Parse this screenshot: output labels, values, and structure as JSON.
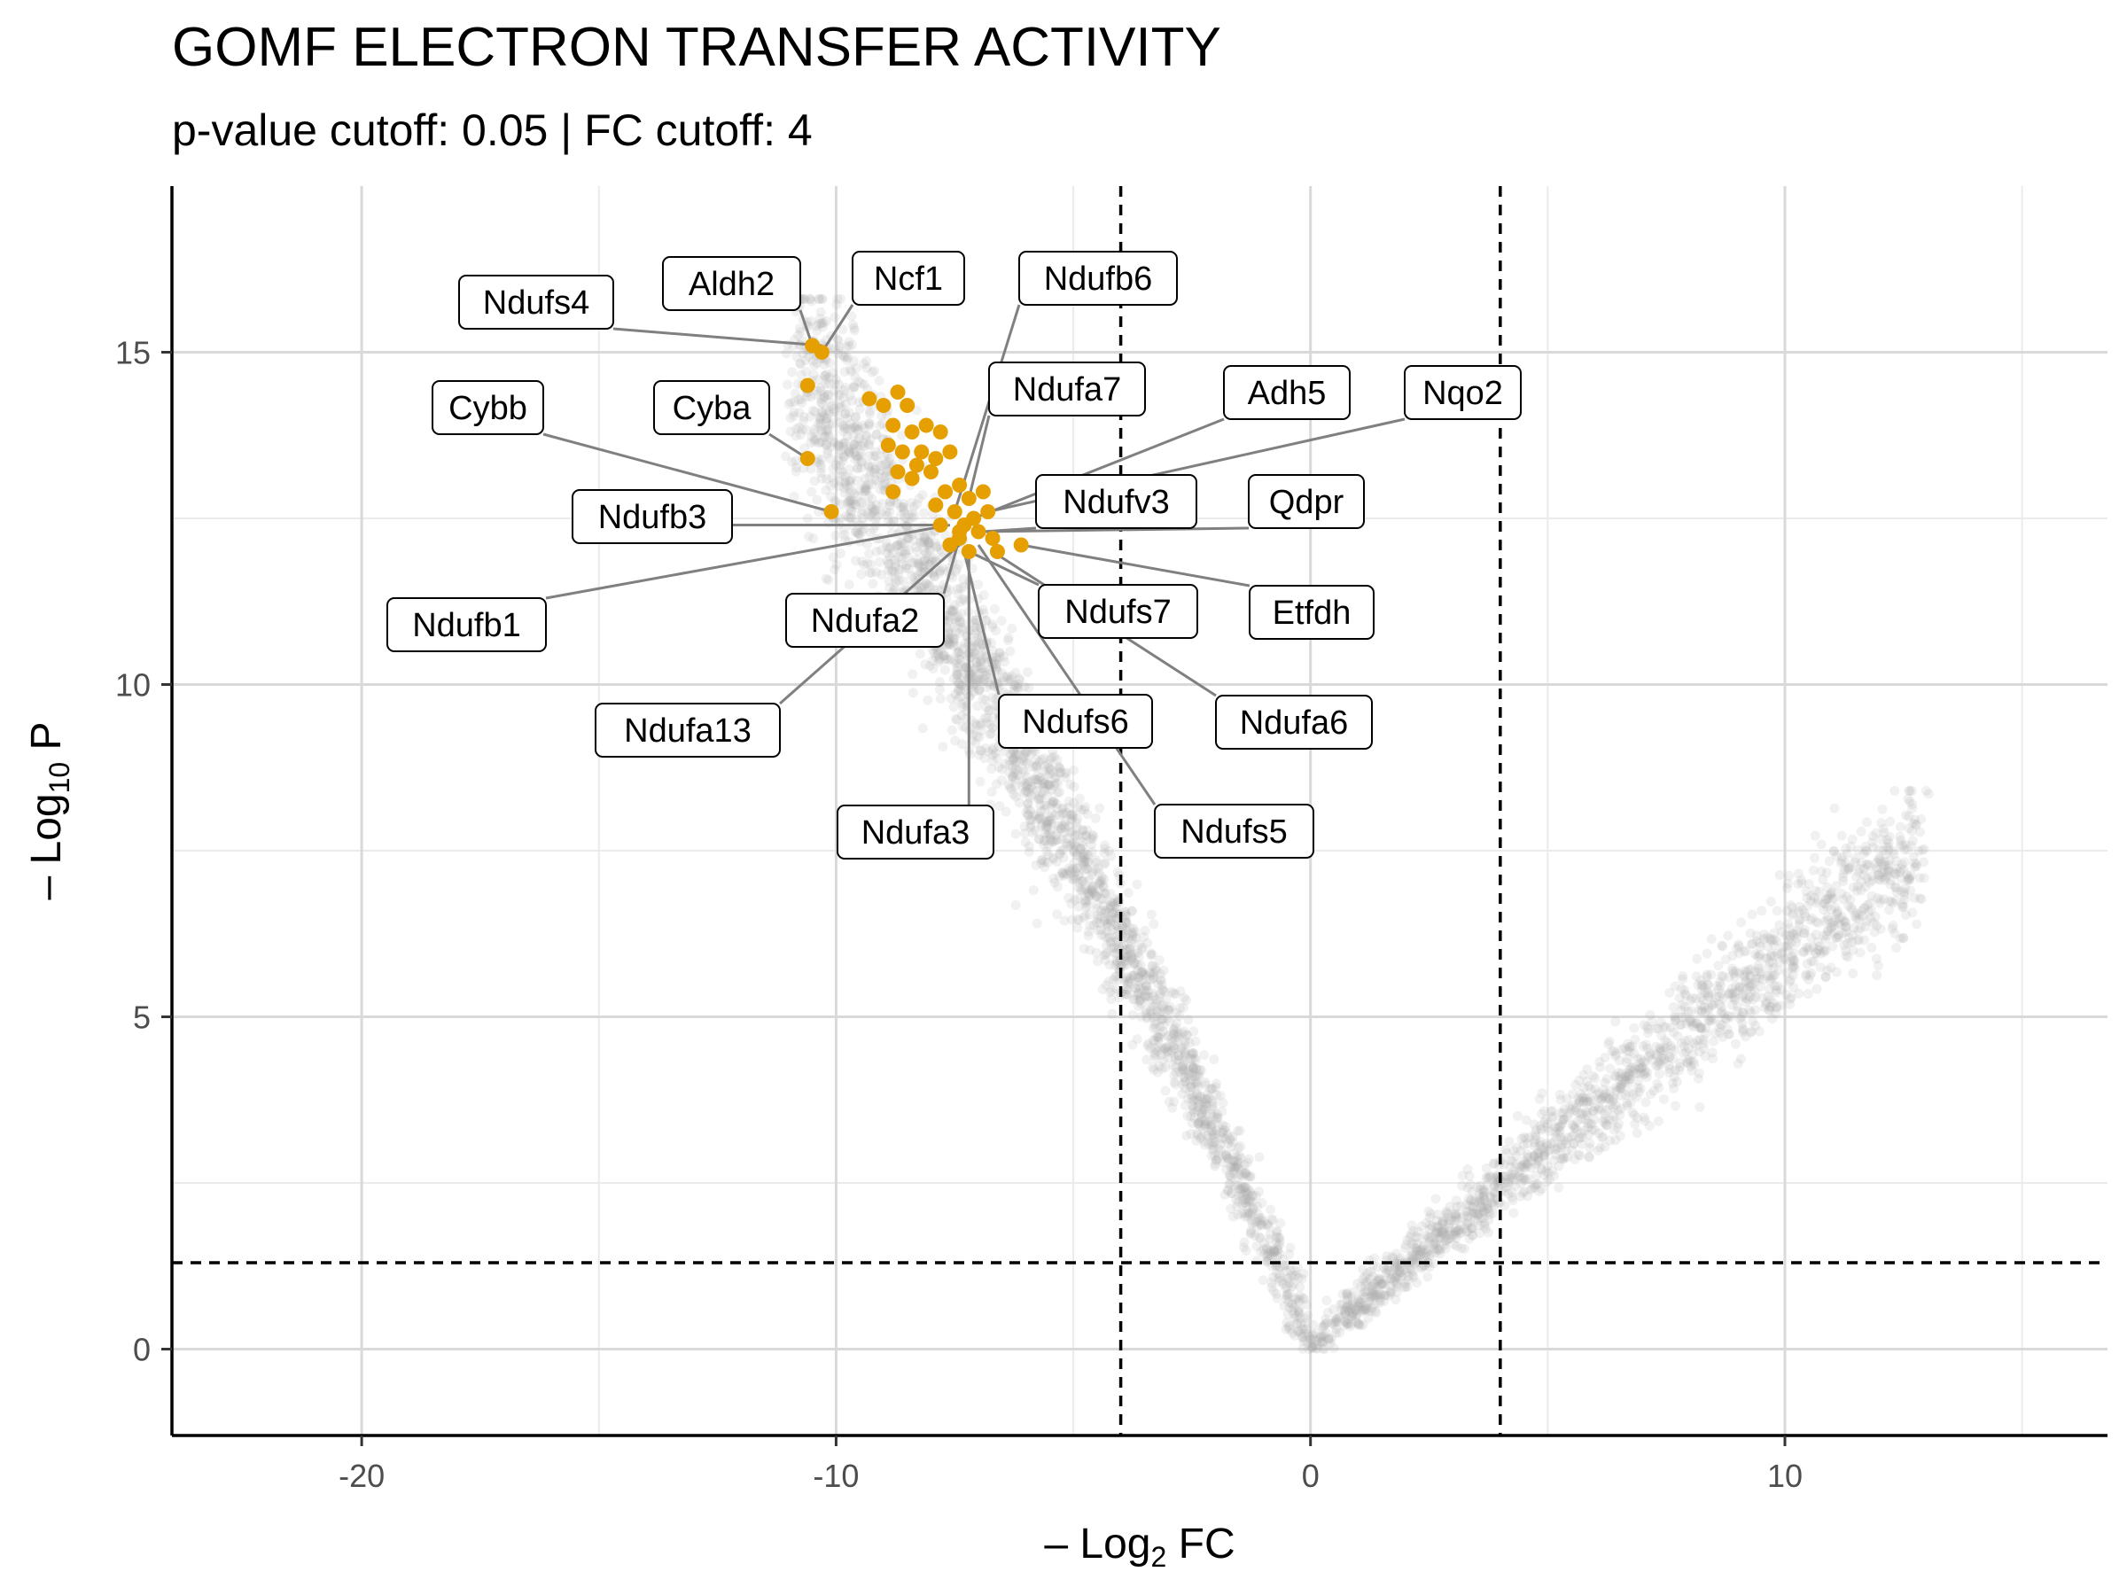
{
  "chart_data": {
    "type": "scatter",
    "title": "GOMF ELECTRON TRANSFER ACTIVITY",
    "subtitle": "p-value cutoff: 0.05 | FC cutoff: 4",
    "xlabel": {
      "prefix": "– Log",
      "sub": "2",
      "suffix": " FC"
    },
    "ylabel": {
      "prefix": "– Log",
      "sub": "10",
      "suffix": " P"
    },
    "xlim": [
      -24,
      16.8
    ],
    "ylim": [
      -1.3,
      17.5
    ],
    "x_ticks": [
      -20,
      -10,
      0,
      10
    ],
    "y_ticks": [
      0,
      5,
      10,
      15
    ],
    "grid": true,
    "cutoffs": {
      "fc_lines": [
        -4,
        4
      ],
      "p_line": 1.3
    },
    "colors": {
      "background_points": "#a6a6a6",
      "highlight": "#e69f00",
      "cutoff_line": "#000000",
      "grid": "#d9d9d9",
      "connector": "#808080"
    },
    "background_series": {
      "name": "",
      "description_free": true,
      "left_arm": {
        "x_range": [
          -11.5,
          0
        ],
        "peak_y": 15.8
      },
      "right_arm": {
        "x_range": [
          0,
          14
        ],
        "peak_y": 8.4
      }
    },
    "highlighted_points": [
      {
        "x": -10.5,
        "y": 15.1
      },
      {
        "x": -10.3,
        "y": 15.0
      },
      {
        "x": -10.6,
        "y": 14.5
      },
      {
        "x": -10.6,
        "y": 13.4
      },
      {
        "x": -10.1,
        "y": 12.6
      },
      {
        "x": -9.3,
        "y": 14.3
      },
      {
        "x": -9.0,
        "y": 14.2
      },
      {
        "x": -8.7,
        "y": 14.4
      },
      {
        "x": -8.5,
        "y": 14.2
      },
      {
        "x": -8.8,
        "y": 13.9
      },
      {
        "x": -8.4,
        "y": 13.8
      },
      {
        "x": -8.1,
        "y": 13.9
      },
      {
        "x": -7.8,
        "y": 13.8
      },
      {
        "x": -8.9,
        "y": 13.6
      },
      {
        "x": -8.6,
        "y": 13.5
      },
      {
        "x": -8.2,
        "y": 13.5
      },
      {
        "x": -7.9,
        "y": 13.4
      },
      {
        "x": -7.6,
        "y": 13.5
      },
      {
        "x": -8.7,
        "y": 13.2
      },
      {
        "x": -8.4,
        "y": 13.1
      },
      {
        "x": -8.0,
        "y": 13.2
      },
      {
        "x": -8.8,
        "y": 12.9
      },
      {
        "x": -7.7,
        "y": 12.9
      },
      {
        "x": -7.4,
        "y": 13.0
      },
      {
        "x": -7.2,
        "y": 12.8
      },
      {
        "x": -6.9,
        "y": 12.9
      },
      {
        "x": -7.9,
        "y": 12.7
      },
      {
        "x": -7.5,
        "y": 12.6
      },
      {
        "x": -7.1,
        "y": 12.5
      },
      {
        "x": -6.8,
        "y": 12.6
      },
      {
        "x": -7.8,
        "y": 12.4
      },
      {
        "x": -7.4,
        "y": 12.3
      },
      {
        "x": -7.0,
        "y": 12.3
      },
      {
        "x": -7.6,
        "y": 12.1
      },
      {
        "x": -7.2,
        "y": 12.0
      },
      {
        "x": -6.7,
        "y": 12.2
      },
      {
        "x": -6.6,
        "y": 12.0
      },
      {
        "x": -6.1,
        "y": 12.1
      },
      {
        "x": -7.4,
        "y": 12.2
      },
      {
        "x": -8.3,
        "y": 13.3
      },
      {
        "x": -7.3,
        "y": 12.4
      }
    ],
    "labels": [
      {
        "text": "Ndufs4",
        "x": -10.3,
        "y": 15.1
      },
      {
        "text": "Aldh2",
        "x": -10.5,
        "y": 15.1
      },
      {
        "text": "Ncf1",
        "x": -10.3,
        "y": 15.0
      },
      {
        "text": "Ndufb6",
        "x": -7.5,
        "y": 12.6
      },
      {
        "text": "Ndufa7",
        "x": -7.2,
        "y": 12.8
      },
      {
        "text": "Adh5",
        "x": -7.1,
        "y": 12.5
      },
      {
        "text": "Nqo2",
        "x": -6.8,
        "y": 12.6
      },
      {
        "text": "Cybb",
        "x": -10.1,
        "y": 12.6
      },
      {
        "text": "Cyba",
        "x": -10.6,
        "y": 13.4
      },
      {
        "text": "Ndufv3",
        "x": -6.9,
        "y": 12.3
      },
      {
        "text": "Qdpr",
        "x": -7.0,
        "y": 12.3
      },
      {
        "text": "Ndufb3",
        "x": -7.8,
        "y": 12.4
      },
      {
        "text": "Ndufb1",
        "x": -7.6,
        "y": 12.4
      },
      {
        "text": "Ndufa2",
        "x": -7.4,
        "y": 12.2
      },
      {
        "text": "Ndufs7",
        "x": -7.2,
        "y": 12.0
      },
      {
        "text": "Etfdh",
        "x": -6.1,
        "y": 12.1
      },
      {
        "text": "Ndufa13",
        "x": -7.4,
        "y": 12.1
      },
      {
        "text": "Ndufs6",
        "x": -7.3,
        "y": 12.0
      },
      {
        "text": "Ndufa6",
        "x": -6.7,
        "y": 12.0
      },
      {
        "text": "Ndufa3",
        "x": -7.2,
        "y": 12.0
      },
      {
        "text": "Ndufs5",
        "x": -7.0,
        "y": 12.1
      }
    ]
  }
}
